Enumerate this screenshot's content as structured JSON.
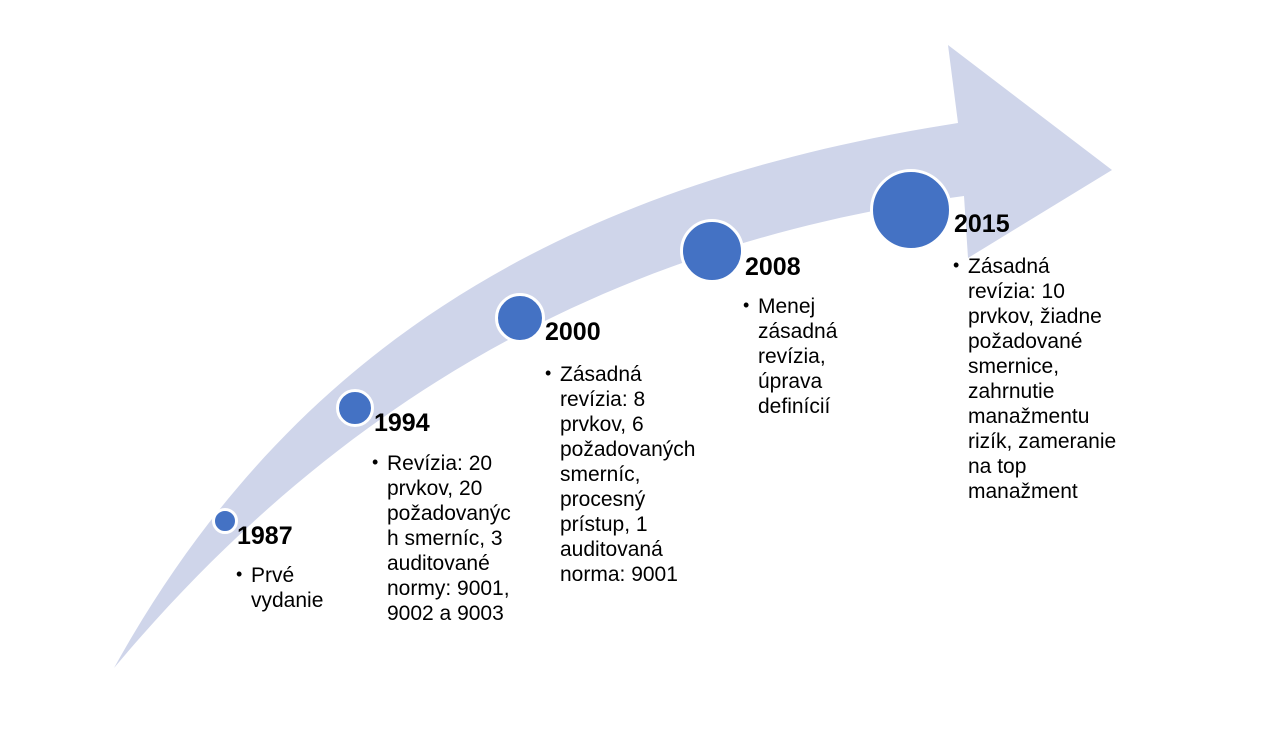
{
  "colors": {
    "arrow_fill": "#cfd5ea",
    "dot_fill": "#4472c4",
    "dot_border": "#ffffff"
  },
  "timeline": [
    {
      "year": "1987",
      "description": "Prvé vydanie"
    },
    {
      "year": "1994",
      "description": "Revízia: 20 prvkov, 20 požadovaných smerníc, 3 auditované normy: 9001, 9002 a 9003"
    },
    {
      "year": "2000",
      "description": "Zásadná revízia: 8 prvkov, 6 požadovaných smerníc, procesný prístup, 1 auditovaná norma: 9001"
    },
    {
      "year": "2008",
      "description": "Menej zásadná revízia, úprava definícií"
    },
    {
      "year": "2015",
      "description": "Zásadná revízia: 10 prvkov, žiadne požadované smernice, zahrnutie manažmentu rizík, zameranie na top manažment"
    }
  ]
}
